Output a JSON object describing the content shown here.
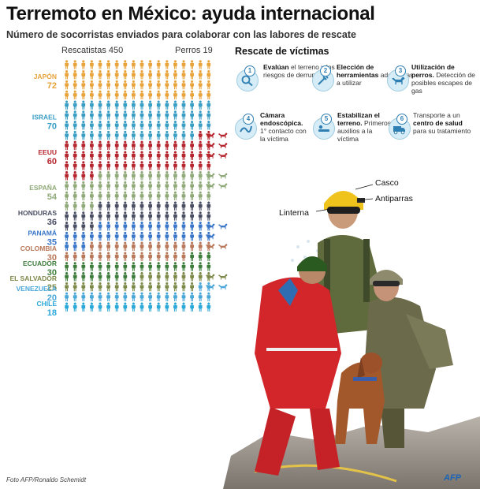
{
  "header": {
    "title": "Terremoto en México: ayuda internacional",
    "subtitle": "Número de socorristas enviados para colaborar con las labores de rescate"
  },
  "legend": {
    "rescuers_label": "Rescatistas 450",
    "dogs_label": "Perros 19"
  },
  "chart_data": {
    "type": "pictogram",
    "title": "Terremoto en México: ayuda internacional",
    "subtitle": "Número de socorristas enviados para colaborar con las labores de rescate",
    "totals": {
      "rescatistas": 450,
      "perros": 19
    },
    "unit_per_icon": 1,
    "icons_per_row": 18,
    "countries": [
      {
        "name": "JAPÓN",
        "rescuers": 72,
        "dogs": 0,
        "color": "#e8a33a"
      },
      {
        "name": "ISRAEL",
        "rescuers": 70,
        "dogs": 0,
        "color": "#3a9ec4"
      },
      {
        "name": "EEUU",
        "rescuers": 60,
        "dogs": 6,
        "color": "#b5262f"
      },
      {
        "name": "ESPAÑA",
        "rescuers": 54,
        "dogs": 4,
        "color": "#8fa978"
      },
      {
        "name": "HONDURAS",
        "rescuers": 36,
        "dogs": 0,
        "color": "#4a4f63"
      },
      {
        "name": "PANAMÁ",
        "rescuers": 35,
        "dogs": 3,
        "color": "#3a77c8"
      },
      {
        "name": "COLOMBIA",
        "rescuers": 30,
        "dogs": 2,
        "color": "#b9785a"
      },
      {
        "name": "ECUADOR",
        "rescuers": 30,
        "dogs": 0,
        "color": "#3e7d3c"
      },
      {
        "name": "EL SALVADOR",
        "rescuers": 25,
        "dogs": 2,
        "color": "#7d8a4a"
      },
      {
        "name": "VENEZUELA",
        "rescuers": 20,
        "dogs": 2,
        "color": "#4aa7d8"
      },
      {
        "name": "CHILE",
        "rescuers": 18,
        "dogs": 0,
        "color": "#2aa8d8"
      }
    ]
  },
  "rescue": {
    "title": "Rescate de víctimas",
    "steps": [
      {
        "num": "1",
        "icon": "search-terrain-icon",
        "bold": "Evalúan",
        "text": " el terreno y los riesgos de derrumbe"
      },
      {
        "num": "2",
        "icon": "tools-icon",
        "bold": "Elección de herramientas",
        "text": " adecuadas a utilizar"
      },
      {
        "num": "3",
        "icon": "dog-icon",
        "bold": "Utilización de perros.",
        "text": " Detección de posibles escapes de gas"
      },
      {
        "num": "4",
        "icon": "endoscope-camera-icon",
        "bold": "Cámara endoscópica.",
        "text": " 1° contacto con la víctima"
      },
      {
        "num": "5",
        "icon": "stretcher-icon",
        "bold": "Estabilizan el terreno.",
        "text": " Primeros auxilios a la víctima"
      },
      {
        "num": "6",
        "icon": "ambulance-icon",
        "bold": "",
        "text": "Transporte a un centro de salud para su tratamiento",
        "bold_inline": "centro de salud"
      }
    ]
  },
  "callouts": {
    "casco": "Casco",
    "antiparras": "Antiparras",
    "linterna": "Linterna"
  },
  "footer": {
    "credit": "Foto AFP/Ronaldo Schemidt",
    "logo": "AFP"
  }
}
